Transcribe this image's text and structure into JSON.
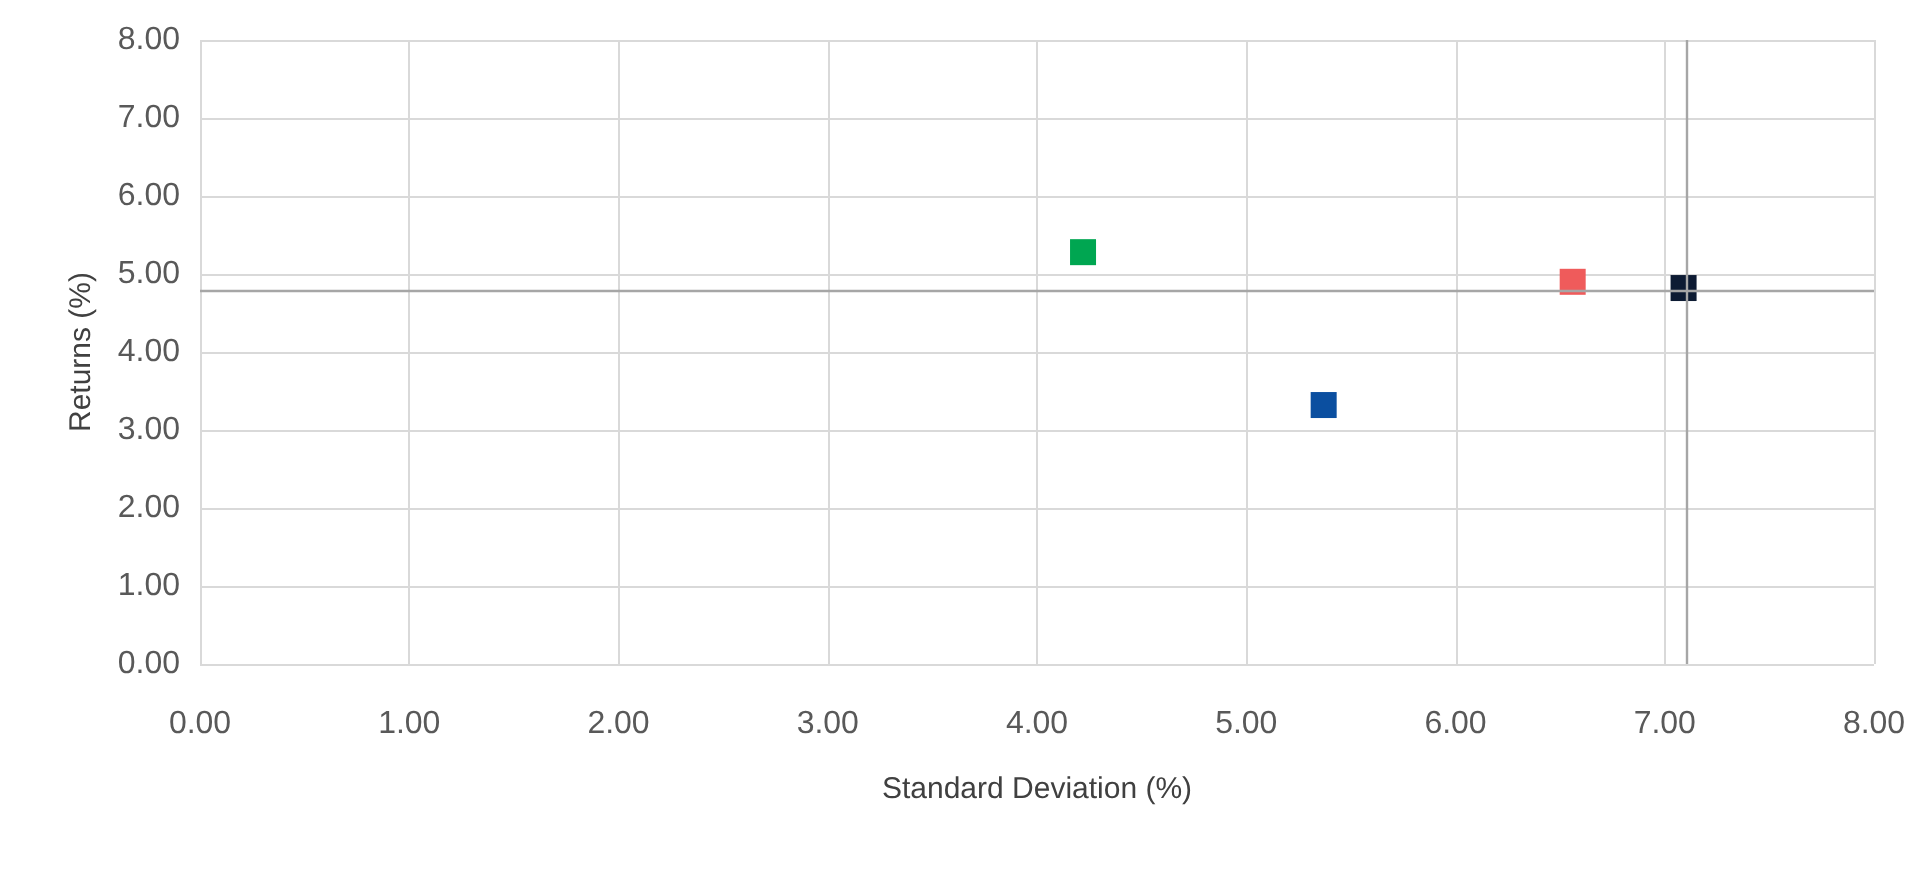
{
  "chart_data": {
    "type": "scatter",
    "xlabel": "Standard Deviation (%)",
    "ylabel": "Returns (%)",
    "x": [
      4.22,
      5.37,
      6.56,
      7.09
    ],
    "values": [
      5.28,
      3.32,
      4.9,
      4.82
    ],
    "colors": [
      "#00a651",
      "#0b4fa0",
      "#ef5b5b",
      "#0d1b33"
    ],
    "marker": "square",
    "xlim": [
      0,
      8
    ],
    "xticks": [
      {
        "value": 0,
        "label": "0.00"
      },
      {
        "value": 1,
        "label": "1.00"
      },
      {
        "value": 2,
        "label": "2.00"
      },
      {
        "value": 3,
        "label": "3.00"
      },
      {
        "value": 4,
        "label": "4.00"
      },
      {
        "value": 5,
        "label": "5.00"
      },
      {
        "value": 6,
        "label": "6.00"
      },
      {
        "value": 7,
        "label": "7.00"
      },
      {
        "value": 8,
        "label": "8.00"
      }
    ],
    "ylim": [
      0,
      8
    ],
    "yticks": [
      {
        "value": 0,
        "label": "0.00"
      },
      {
        "value": 1,
        "label": "1.00"
      },
      {
        "value": 2,
        "label": "2.00"
      },
      {
        "value": 3,
        "label": "3.00"
      },
      {
        "value": 4,
        "label": "4.00"
      },
      {
        "value": 5,
        "label": "5.00"
      },
      {
        "value": 6,
        "label": "6.00"
      },
      {
        "value": 7,
        "label": "7.00"
      },
      {
        "value": 8,
        "label": "8.00"
      }
    ],
    "ref_lines": [
      {
        "axis": "x",
        "value": 7.1,
        "color": "#a6a6a6"
      },
      {
        "axis": "y",
        "value": 4.8,
        "color": "#a6a6a6"
      }
    ],
    "grid": true
  }
}
